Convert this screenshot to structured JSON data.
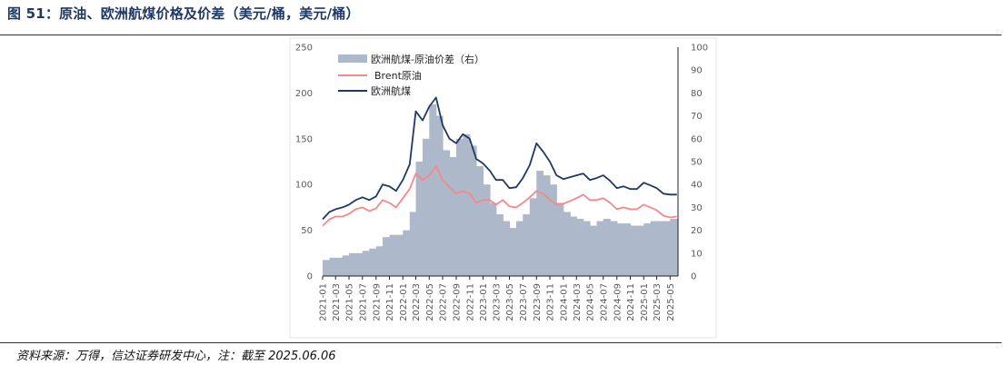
{
  "header": {
    "title": "图 51：原油、欧洲航煤价格及价差（美元/桶，美元/桶）"
  },
  "footer": {
    "source": "资料来源：万得，信达证券研发中心，注：截至 2025.06.06"
  },
  "chart_data": {
    "type": "line",
    "title": "图 51：原油、欧洲航煤价格及价差（美元/桶，美元/桶）",
    "xlabel": "",
    "ylabel": "",
    "y_left": {
      "range": [
        0,
        250
      ],
      "ticks": [
        "0",
        "50",
        "100",
        "150",
        "200",
        "250"
      ]
    },
    "y_right": {
      "range": [
        0,
        100
      ],
      "ticks": [
        "0",
        "10",
        "20",
        "30",
        "40",
        "50",
        "60",
        "70",
        "80",
        "90",
        "100"
      ]
    },
    "x_ticks": [
      "2021-01",
      "2021-03",
      "2021-05",
      "2021-07",
      "2021-09",
      "2021-11",
      "2022-01",
      "2022-03",
      "2022-05",
      "2022-07",
      "2022-09",
      "2022-11",
      "2023-01",
      "2023-03",
      "2023-05",
      "2023-07",
      "2023-09",
      "2023-11",
      "2024-01",
      "2024-03",
      "2024-05",
      "2024-07",
      "2024-09",
      "2024-11",
      "2025-01",
      "2025-03",
      "2025-05"
    ],
    "grid": false,
    "legend_position": "top-left",
    "colors": {
      "spread": "#adb9ca",
      "brent": "#f4888a",
      "jet": "#1f3864"
    },
    "series": [
      {
        "name": "欧洲航煤-原油价差（右）",
        "type": "area",
        "axis": "right",
        "x": [
          "2021-01",
          "2021-02",
          "2021-03",
          "2021-04",
          "2021-05",
          "2021-06",
          "2021-07",
          "2021-08",
          "2021-09",
          "2021-10",
          "2021-11",
          "2021-12",
          "2022-01",
          "2022-02",
          "2022-03",
          "2022-04",
          "2022-05",
          "2022-06",
          "2022-07",
          "2022-08",
          "2022-09",
          "2022-10",
          "2022-11",
          "2022-12",
          "2023-01",
          "2023-02",
          "2023-03",
          "2023-04",
          "2023-05",
          "2023-06",
          "2023-07",
          "2023-08",
          "2023-09",
          "2023-10",
          "2023-11",
          "2023-12",
          "2024-01",
          "2024-02",
          "2024-03",
          "2024-04",
          "2024-05",
          "2024-06",
          "2024-07",
          "2024-08",
          "2024-09",
          "2024-10",
          "2024-11",
          "2024-12",
          "2025-01",
          "2025-02",
          "2025-03",
          "2025-04",
          "2025-05",
          "2025-06"
        ],
        "values": [
          7,
          8,
          8,
          9,
          10,
          10,
          11,
          12,
          13,
          17,
          18,
          18,
          20,
          28,
          50,
          60,
          75,
          70,
          55,
          52,
          60,
          62,
          57,
          48,
          40,
          32,
          27,
          24,
          21,
          24,
          27,
          34,
          46,
          44,
          40,
          32,
          28,
          26,
          25,
          24,
          22,
          24,
          25,
          24,
          23,
          23,
          22,
          22,
          23,
          24,
          24,
          24,
          25,
          25
        ]
      },
      {
        "name": "Brent原油",
        "type": "line",
        "axis": "left",
        "x": [
          "2021-01",
          "2021-02",
          "2021-03",
          "2021-04",
          "2021-05",
          "2021-06",
          "2021-07",
          "2021-08",
          "2021-09",
          "2021-10",
          "2021-11",
          "2021-12",
          "2022-01",
          "2022-02",
          "2022-03",
          "2022-04",
          "2022-05",
          "2022-06",
          "2022-07",
          "2022-08",
          "2022-09",
          "2022-10",
          "2022-11",
          "2022-12",
          "2023-01",
          "2023-02",
          "2023-03",
          "2023-04",
          "2023-05",
          "2023-06",
          "2023-07",
          "2023-08",
          "2023-09",
          "2023-10",
          "2023-11",
          "2023-12",
          "2024-01",
          "2024-02",
          "2024-03",
          "2024-04",
          "2024-05",
          "2024-06",
          "2024-07",
          "2024-08",
          "2024-09",
          "2024-10",
          "2024-11",
          "2024-12",
          "2025-01",
          "2025-02",
          "2025-03",
          "2025-04",
          "2025-05",
          "2025-06"
        ],
        "values": [
          55,
          62,
          65,
          65,
          68,
          73,
          75,
          71,
          74,
          83,
          80,
          75,
          85,
          95,
          112,
          105,
          110,
          120,
          105,
          97,
          90,
          93,
          90,
          80,
          83,
          83,
          78,
          83,
          76,
          75,
          80,
          86,
          93,
          90,
          83,
          78,
          79,
          82,
          85,
          89,
          83,
          83,
          85,
          80,
          73,
          75,
          73,
          73,
          78,
          75,
          72,
          66,
          64,
          65
        ]
      },
      {
        "name": "欧洲航煤",
        "type": "line",
        "axis": "left",
        "x": [
          "2021-01",
          "2021-02",
          "2021-03",
          "2021-04",
          "2021-05",
          "2021-06",
          "2021-07",
          "2021-08",
          "2021-09",
          "2021-10",
          "2021-11",
          "2021-12",
          "2022-01",
          "2022-02",
          "2022-03",
          "2022-04",
          "2022-05",
          "2022-06",
          "2022-07",
          "2022-08",
          "2022-09",
          "2022-10",
          "2022-11",
          "2022-12",
          "2023-01",
          "2023-02",
          "2023-03",
          "2023-04",
          "2023-05",
          "2023-06",
          "2023-07",
          "2023-08",
          "2023-09",
          "2023-10",
          "2023-11",
          "2023-12",
          "2024-01",
          "2024-02",
          "2024-03",
          "2024-04",
          "2024-05",
          "2024-06",
          "2024-07",
          "2024-08",
          "2024-09",
          "2024-10",
          "2024-11",
          "2024-12",
          "2025-01",
          "2025-02",
          "2025-03",
          "2025-04",
          "2025-05",
          "2025-06"
        ],
        "values": [
          62,
          70,
          73,
          75,
          78,
          83,
          86,
          83,
          87,
          100,
          98,
          93,
          105,
          122,
          180,
          170,
          185,
          195,
          165,
          150,
          145,
          155,
          150,
          128,
          123,
          115,
          105,
          105,
          96,
          97,
          107,
          121,
          145,
          136,
          125,
          110,
          106,
          108,
          110,
          112,
          105,
          107,
          110,
          104,
          96,
          98,
          95,
          95,
          102,
          99,
          96,
          90,
          89,
          89
        ]
      }
    ]
  }
}
